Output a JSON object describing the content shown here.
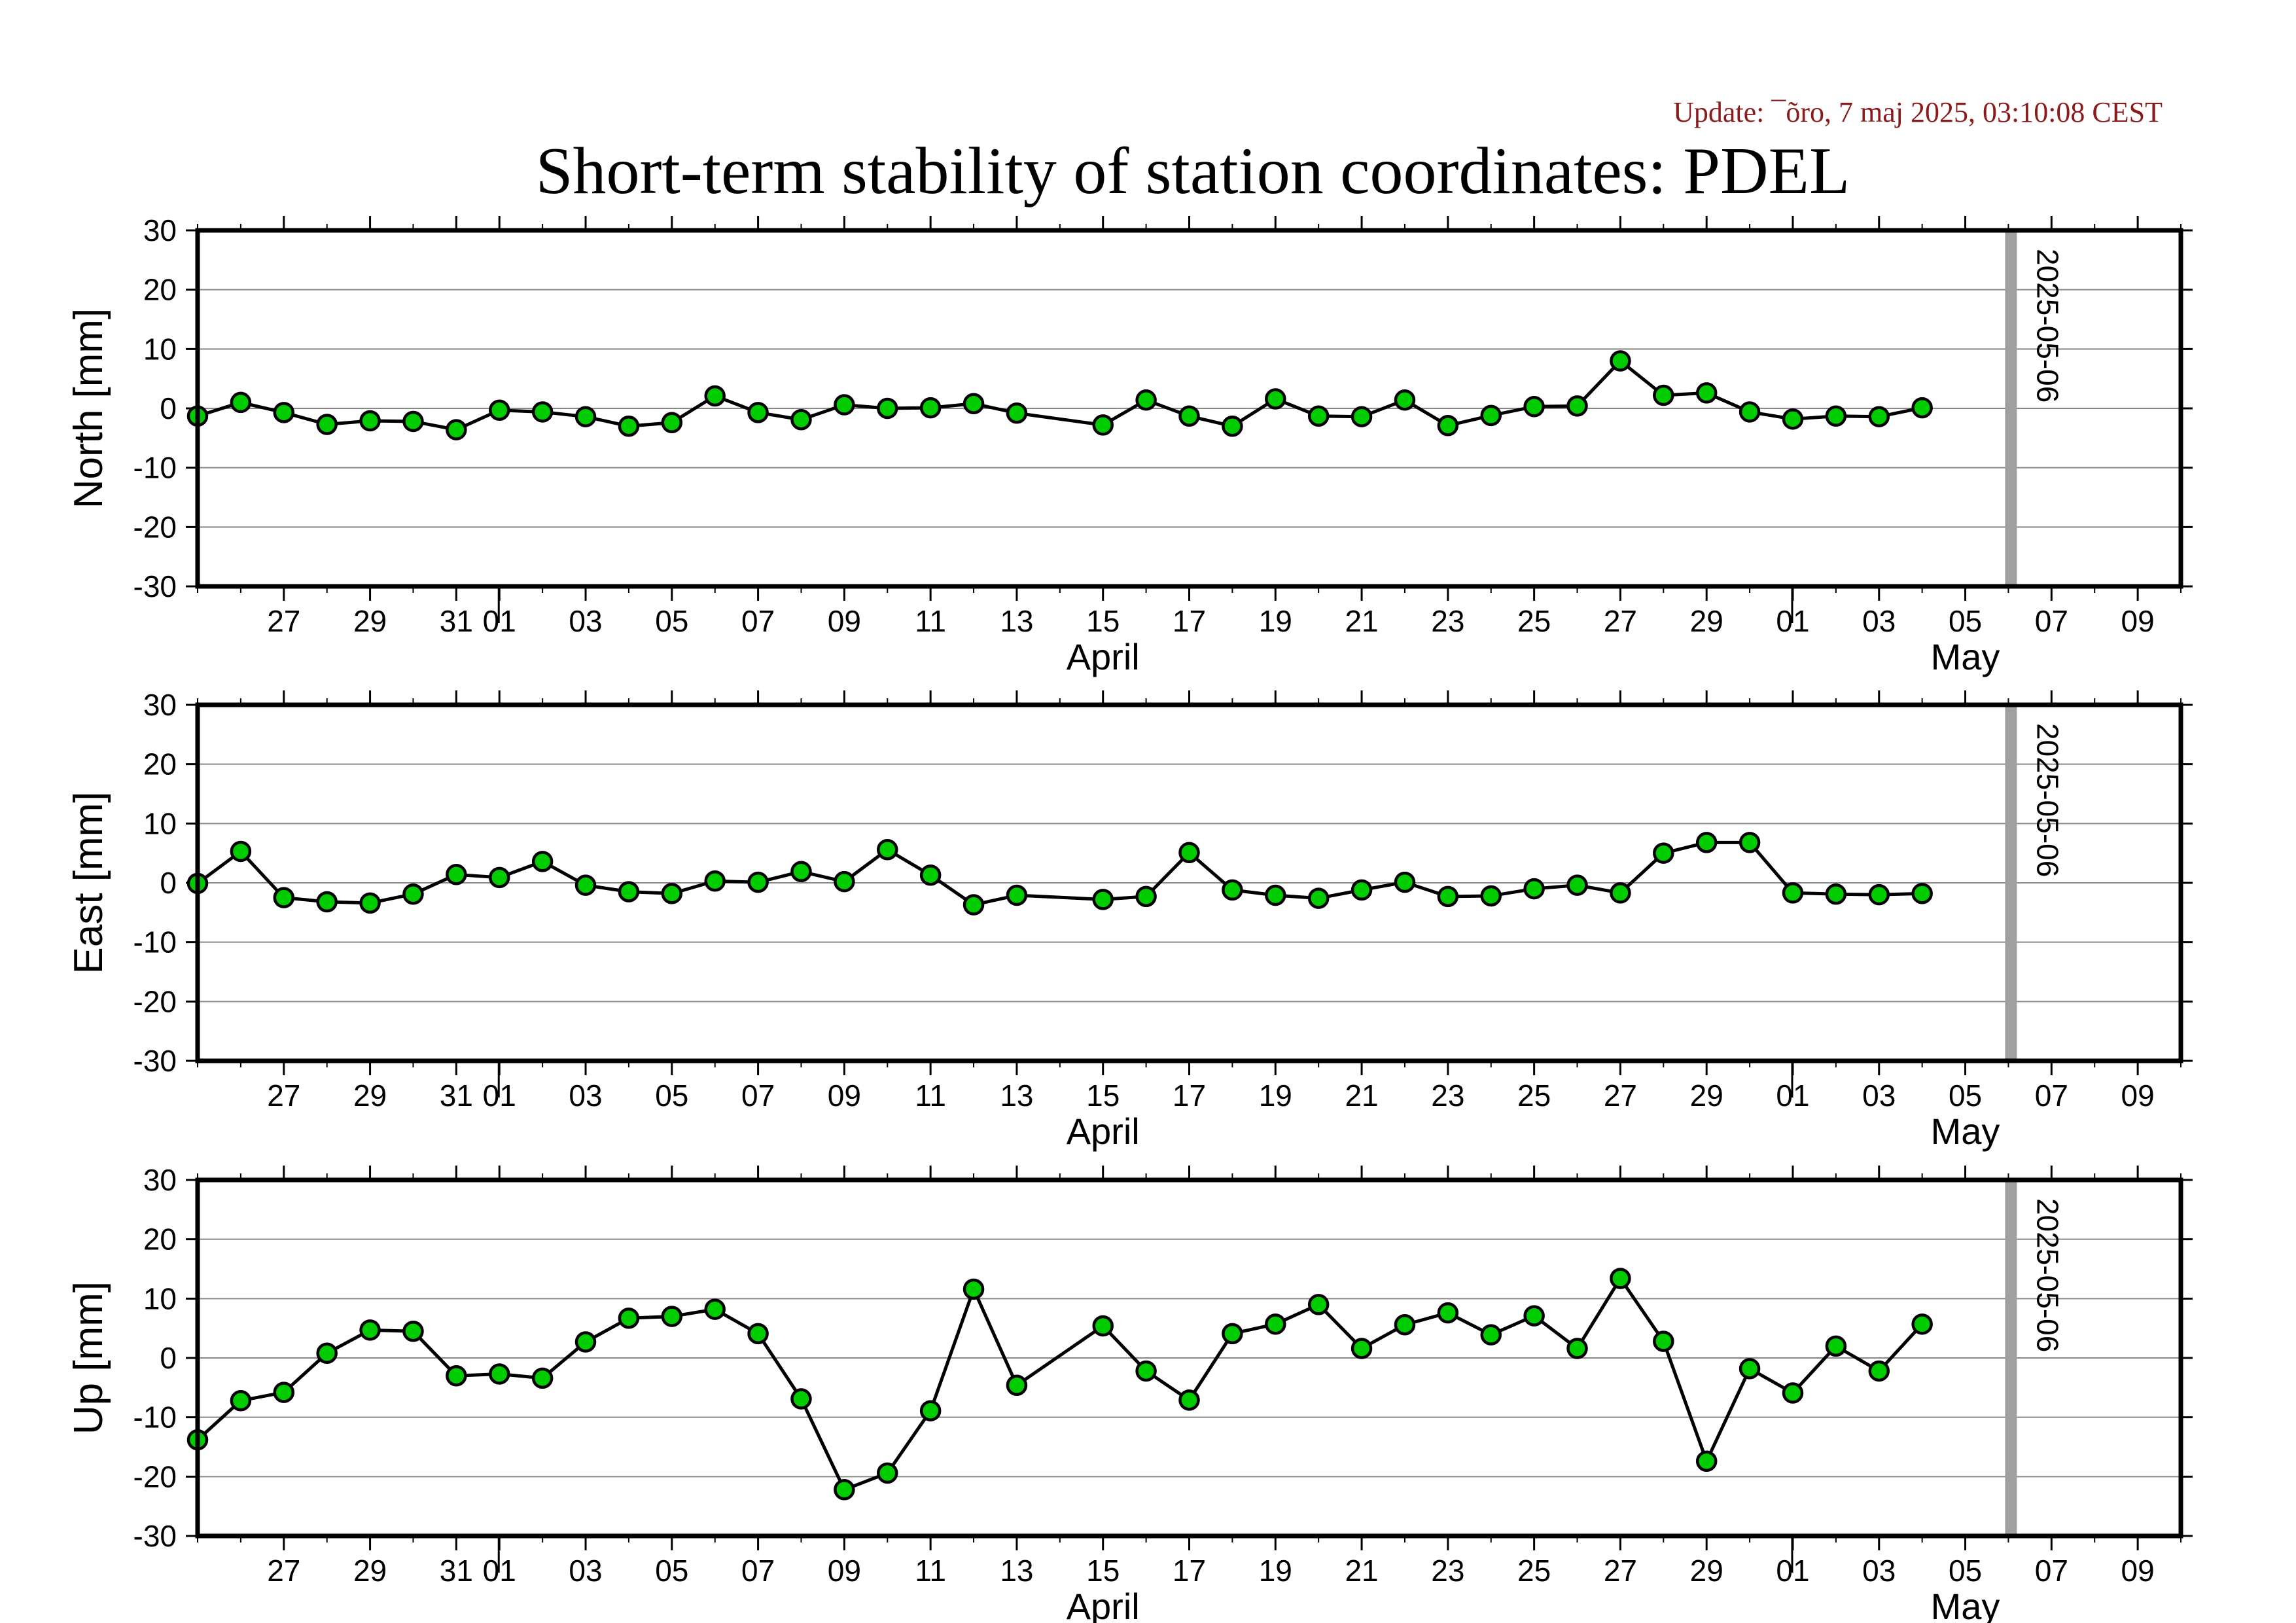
{
  "header": {
    "update": "Update: ¯õro, 7 maj 2025, 03:10:08 CEST",
    "title": "Short-term stability of station coordinates: PDEL"
  },
  "colors": {
    "marker_fill": "#00cc00",
    "marker_stroke": "#000000",
    "line": "#000000",
    "grid": "#888888",
    "date_marker": "#a0a0a0",
    "update_text": "#8b1a1a"
  },
  "x_axis": {
    "domain": [
      "2025-03-25",
      "2025-05-10"
    ],
    "tick_labels": [
      {
        "date": "2025-03-27",
        "label": "27"
      },
      {
        "date": "2025-03-29",
        "label": "29"
      },
      {
        "date": "2025-03-31",
        "label": "31"
      },
      {
        "date": "2025-04-01",
        "label": "01"
      },
      {
        "date": "2025-04-03",
        "label": "03"
      },
      {
        "date": "2025-04-05",
        "label": "05"
      },
      {
        "date": "2025-04-07",
        "label": "07"
      },
      {
        "date": "2025-04-09",
        "label": "09"
      },
      {
        "date": "2025-04-11",
        "label": "11"
      },
      {
        "date": "2025-04-13",
        "label": "13"
      },
      {
        "date": "2025-04-15",
        "label": "15"
      },
      {
        "date": "2025-04-17",
        "label": "17"
      },
      {
        "date": "2025-04-19",
        "label": "19"
      },
      {
        "date": "2025-04-21",
        "label": "21"
      },
      {
        "date": "2025-04-23",
        "label": "23"
      },
      {
        "date": "2025-04-25",
        "label": "25"
      },
      {
        "date": "2025-04-27",
        "label": "27"
      },
      {
        "date": "2025-04-29",
        "label": "29"
      },
      {
        "date": "2025-05-01",
        "label": "01"
      },
      {
        "date": "2025-05-03",
        "label": "03"
      },
      {
        "date": "2025-05-05",
        "label": "05"
      },
      {
        "date": "2025-05-07",
        "label": "07"
      },
      {
        "date": "2025-05-09",
        "label": "09"
      }
    ],
    "month_boundaries": [
      "2025-04-01",
      "2025-05-01"
    ],
    "month_labels": [
      {
        "date": "2025-04-15",
        "label": "April"
      },
      {
        "date": "2025-05-05",
        "label": "May"
      }
    ],
    "marker_date": "2025-05-06",
    "marker_label": "2025-05-06"
  },
  "chart_data": [
    {
      "type": "line",
      "ylabel": "North [mm]",
      "ylim": [
        -30,
        30
      ],
      "yticks": [
        30,
        20,
        10,
        0,
        -10,
        -20,
        -30
      ],
      "grid": true,
      "points": [
        [
          "2025-03-25",
          -1.3
        ],
        [
          "2025-03-26",
          1.0
        ],
        [
          "2025-03-27",
          -0.7
        ],
        [
          "2025-03-28",
          -2.7
        ],
        [
          "2025-03-29",
          -2.1
        ],
        [
          "2025-03-30",
          -2.2
        ],
        [
          "2025-03-31",
          -3.6
        ],
        [
          "2025-04-01",
          -0.3
        ],
        [
          "2025-04-02",
          -0.6
        ],
        [
          "2025-04-03",
          -1.4
        ],
        [
          "2025-04-04",
          -3.0
        ],
        [
          "2025-04-05",
          -2.4
        ],
        [
          "2025-04-06",
          2.1
        ],
        [
          "2025-04-07",
          -0.7
        ],
        [
          "2025-04-08",
          -1.9
        ],
        [
          "2025-04-09",
          0.6
        ],
        [
          "2025-04-10",
          0.0
        ],
        [
          "2025-04-11",
          0.1
        ],
        [
          "2025-04-12",
          0.8
        ],
        [
          "2025-04-13",
          -0.8
        ],
        [
          "2025-04-15",
          -2.8
        ],
        [
          "2025-04-16",
          1.4
        ],
        [
          "2025-04-17",
          -1.3
        ],
        [
          "2025-04-18",
          -3.0
        ],
        [
          "2025-04-19",
          1.6
        ],
        [
          "2025-04-20",
          -1.3
        ],
        [
          "2025-04-21",
          -1.4
        ],
        [
          "2025-04-22",
          1.4
        ],
        [
          "2025-04-23",
          -2.9
        ],
        [
          "2025-04-24",
          -1.2
        ],
        [
          "2025-04-25",
          0.3
        ],
        [
          "2025-04-26",
          0.4
        ],
        [
          "2025-04-27",
          8.0
        ],
        [
          "2025-04-28",
          2.2
        ],
        [
          "2025-04-29",
          2.6
        ],
        [
          "2025-04-30",
          -0.6
        ],
        [
          "2025-05-01",
          -1.8
        ],
        [
          "2025-05-02",
          -1.3
        ],
        [
          "2025-05-03",
          -1.4
        ],
        [
          "2025-05-04",
          0.1
        ]
      ]
    },
    {
      "type": "line",
      "ylabel": "East [mm]",
      "ylim": [
        -30,
        30
      ],
      "yticks": [
        30,
        20,
        10,
        0,
        -10,
        -20,
        -30
      ],
      "grid": true,
      "points": [
        [
          "2025-03-25",
          -0.1
        ],
        [
          "2025-03-26",
          5.3
        ],
        [
          "2025-03-27",
          -2.5
        ],
        [
          "2025-03-28",
          -3.2
        ],
        [
          "2025-03-29",
          -3.4
        ],
        [
          "2025-03-30",
          -1.9
        ],
        [
          "2025-03-31",
          1.4
        ],
        [
          "2025-04-01",
          0.9
        ],
        [
          "2025-04-02",
          3.6
        ],
        [
          "2025-04-03",
          -0.4
        ],
        [
          "2025-04-04",
          -1.5
        ],
        [
          "2025-04-05",
          -1.8
        ],
        [
          "2025-04-06",
          0.3
        ],
        [
          "2025-04-07",
          0.1
        ],
        [
          "2025-04-08",
          1.9
        ],
        [
          "2025-04-09",
          0.2
        ],
        [
          "2025-04-10",
          5.6
        ],
        [
          "2025-04-11",
          1.3
        ],
        [
          "2025-04-12",
          -3.7
        ],
        [
          "2025-04-13",
          -2.1
        ],
        [
          "2025-04-15",
          -2.8
        ],
        [
          "2025-04-16",
          -2.3
        ],
        [
          "2025-04-17",
          5.1
        ],
        [
          "2025-04-18",
          -1.2
        ],
        [
          "2025-04-19",
          -2.1
        ],
        [
          "2025-04-20",
          -2.6
        ],
        [
          "2025-04-21",
          -1.2
        ],
        [
          "2025-04-22",
          0.1
        ],
        [
          "2025-04-23",
          -2.3
        ],
        [
          "2025-04-24",
          -2.2
        ],
        [
          "2025-04-25",
          -1.0
        ],
        [
          "2025-04-26",
          -0.4
        ],
        [
          "2025-04-27",
          -1.7
        ],
        [
          "2025-04-28",
          5.0
        ],
        [
          "2025-04-29",
          6.8
        ],
        [
          "2025-04-30",
          6.8
        ],
        [
          "2025-05-01",
          -1.7
        ],
        [
          "2025-05-02",
          -1.9
        ],
        [
          "2025-05-03",
          -2.0
        ],
        [
          "2025-05-04",
          -1.8
        ]
      ]
    },
    {
      "type": "line",
      "ylabel": "Up [mm]",
      "ylim": [
        -30,
        30
      ],
      "yticks": [
        30,
        20,
        10,
        0,
        -10,
        -20,
        -30
      ],
      "grid": true,
      "points": [
        [
          "2025-03-25",
          -13.8
        ],
        [
          "2025-03-26",
          -7.2
        ],
        [
          "2025-03-27",
          -5.8
        ],
        [
          "2025-03-28",
          0.8
        ],
        [
          "2025-03-29",
          4.7
        ],
        [
          "2025-03-30",
          4.5
        ],
        [
          "2025-03-31",
          -3.0
        ],
        [
          "2025-04-01",
          -2.7
        ],
        [
          "2025-04-02",
          -3.4
        ],
        [
          "2025-04-03",
          2.7
        ],
        [
          "2025-04-04",
          6.7
        ],
        [
          "2025-04-05",
          7.0
        ],
        [
          "2025-04-06",
          8.2
        ],
        [
          "2025-04-07",
          4.1
        ],
        [
          "2025-04-08",
          -6.9
        ],
        [
          "2025-04-09",
          -22.2
        ],
        [
          "2025-04-10",
          -19.4
        ],
        [
          "2025-04-11",
          -8.9
        ],
        [
          "2025-04-12",
          11.6
        ],
        [
          "2025-04-13",
          -4.6
        ],
        [
          "2025-04-15",
          5.4
        ],
        [
          "2025-04-16",
          -2.2
        ],
        [
          "2025-04-17",
          -7.1
        ],
        [
          "2025-04-18",
          4.1
        ],
        [
          "2025-04-19",
          5.7
        ],
        [
          "2025-04-20",
          9.0
        ],
        [
          "2025-04-21",
          1.6
        ],
        [
          "2025-04-22",
          5.6
        ],
        [
          "2025-04-23",
          7.6
        ],
        [
          "2025-04-24",
          3.9
        ],
        [
          "2025-04-25",
          7.1
        ],
        [
          "2025-04-26",
          1.6
        ],
        [
          "2025-04-27",
          13.4
        ],
        [
          "2025-04-28",
          2.8
        ],
        [
          "2025-04-29",
          -17.4
        ],
        [
          "2025-04-30",
          -1.8
        ],
        [
          "2025-05-01",
          -5.9
        ],
        [
          "2025-05-02",
          2.0
        ],
        [
          "2025-05-03",
          -2.2
        ],
        [
          "2025-05-04",
          5.7
        ]
      ]
    }
  ]
}
